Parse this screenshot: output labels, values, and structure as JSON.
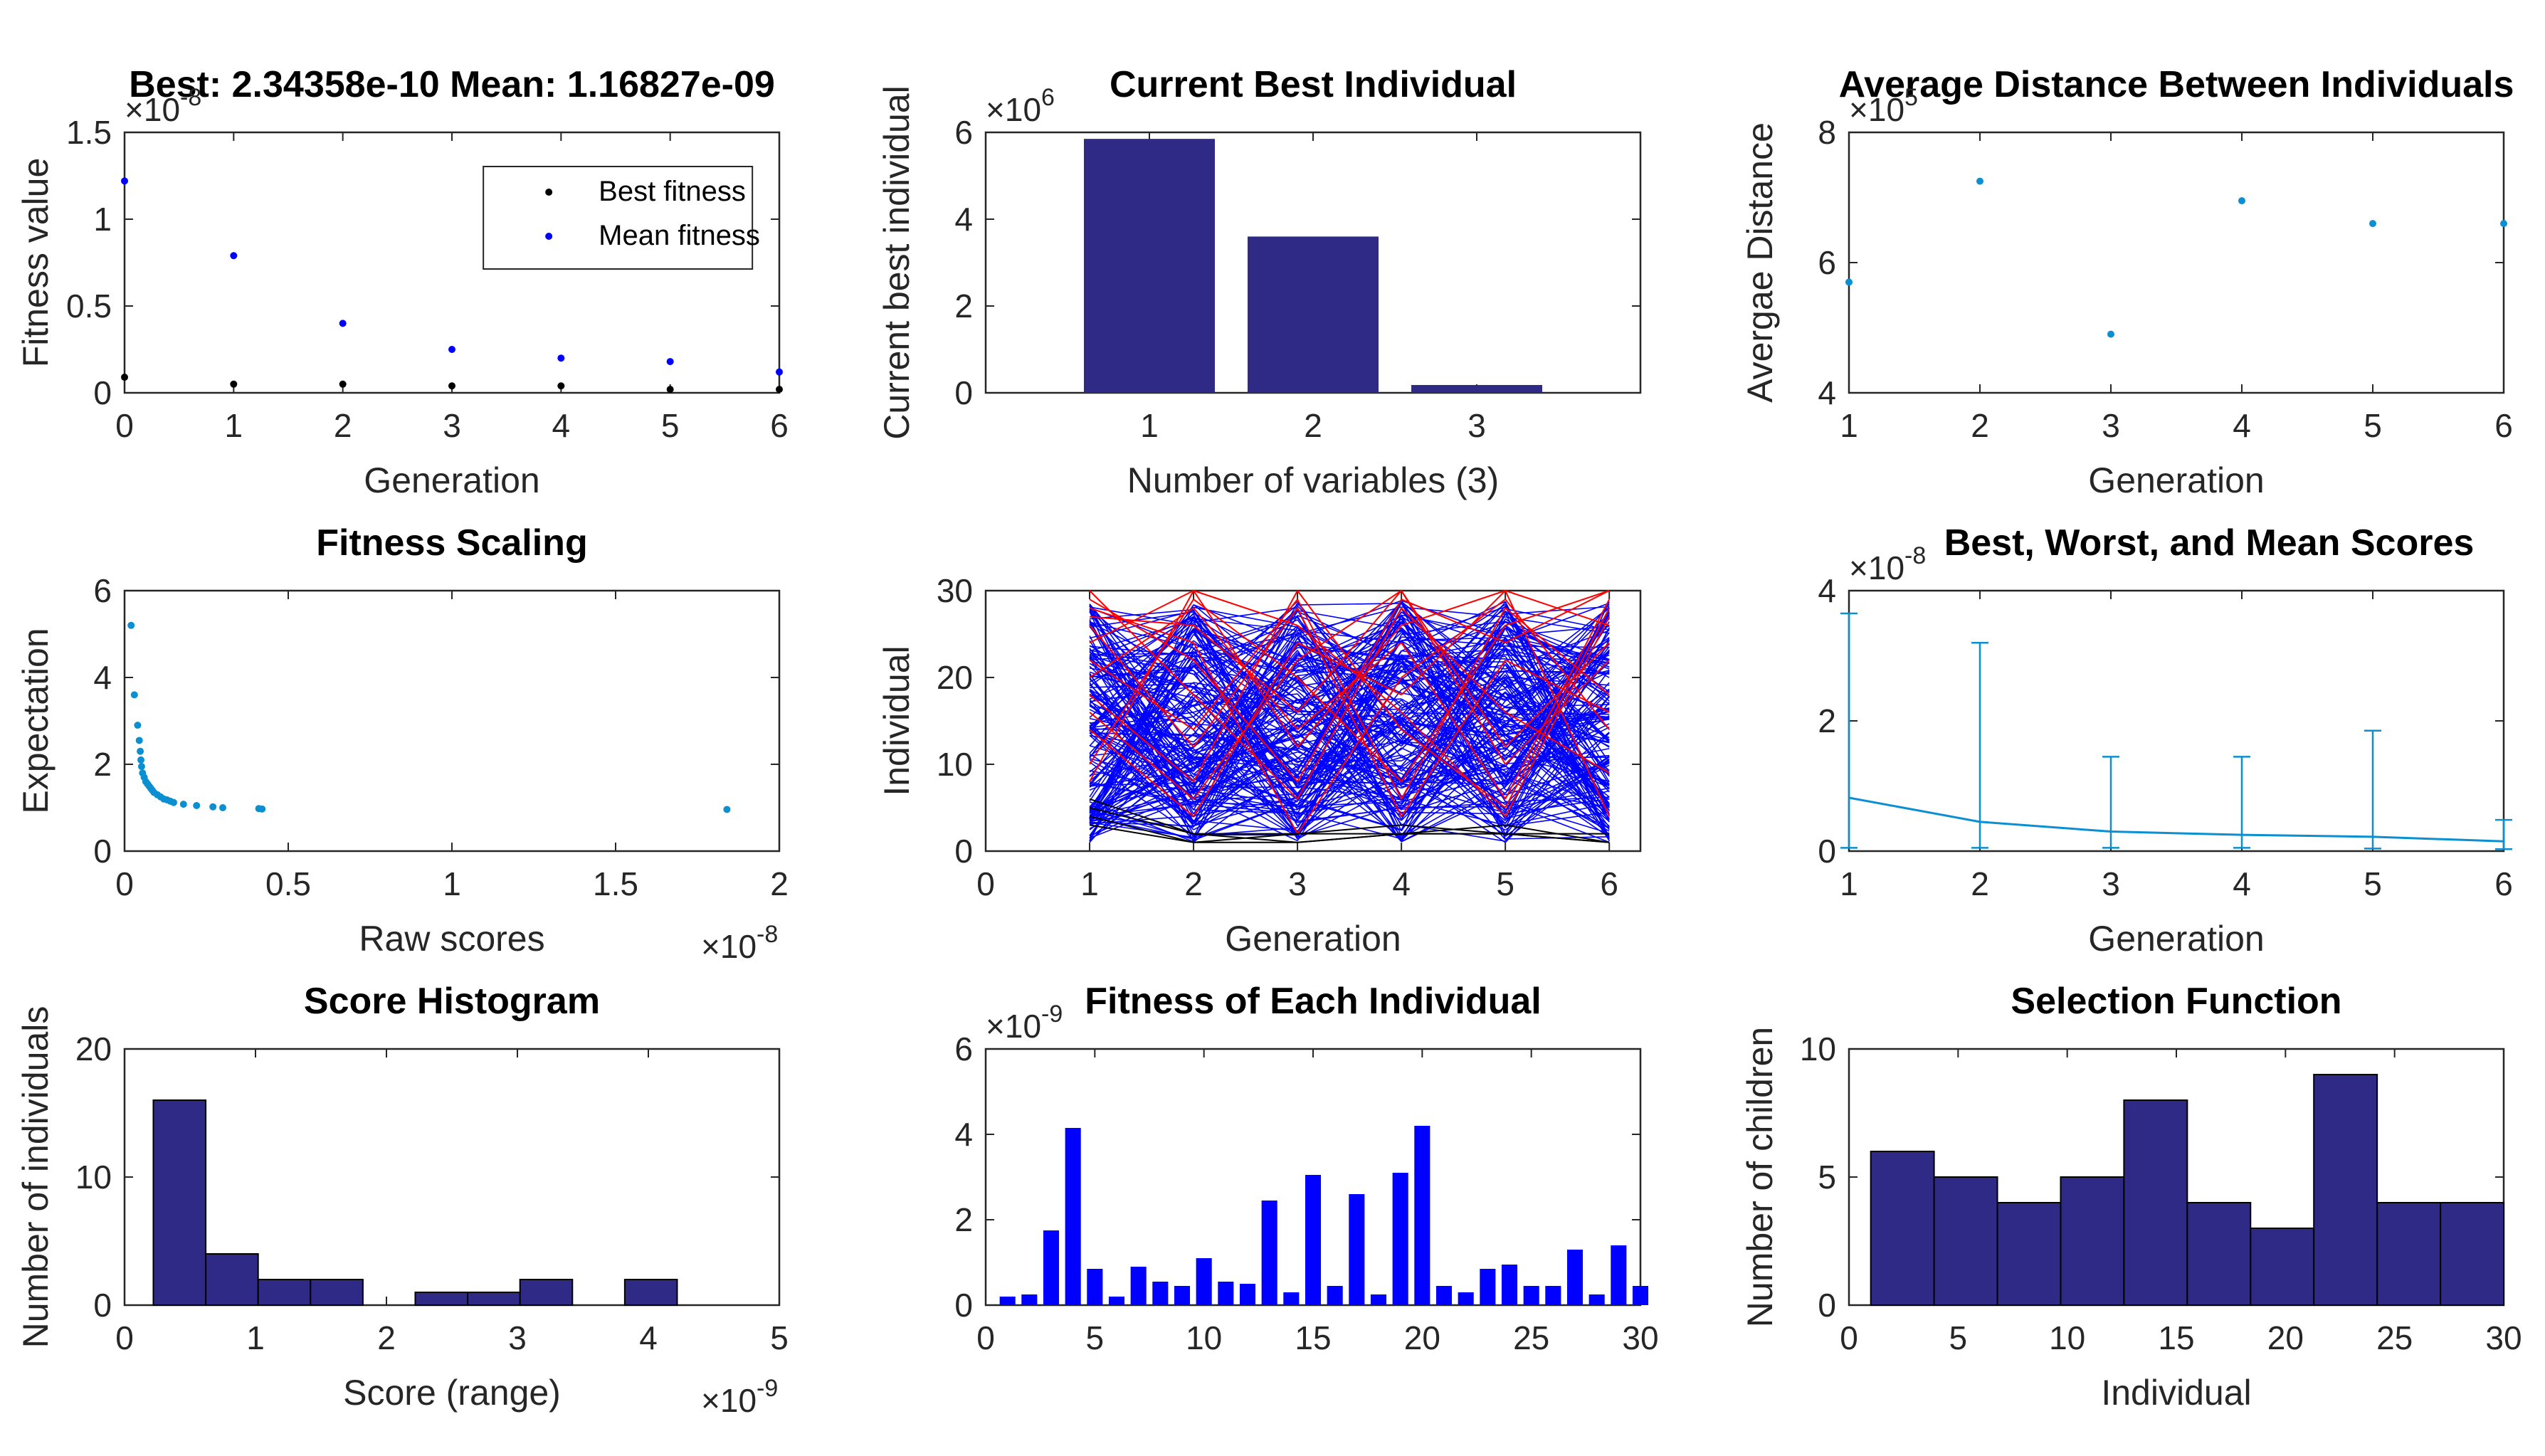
{
  "window": {
    "background": "#ffffff"
  },
  "colors": {
    "navy": "#2e2a86",
    "blue": "#0000ff",
    "cyan": "#0c8fd0",
    "red": "#ff0000",
    "black": "#000000"
  },
  "chart_data": [
    {
      "id": "p1",
      "type": "scatter",
      "title": "Best: 2.34358e-10 Mean: 1.16827e-09",
      "xlabel": "Generation",
      "ylabel": "Fitness value",
      "xlim": [
        0,
        6
      ],
      "ylim": [
        0,
        1.5
      ],
      "xticks": [
        "0",
        "1",
        "2",
        "3",
        "4",
        "5",
        "6"
      ],
      "yticks": [
        "0",
        "0.5",
        "1",
        "1.5"
      ],
      "yexp": "10",
      "yexp_power": "-8",
      "legend": {
        "position": "top-right",
        "entries": [
          "Best fitness",
          "Mean fitness"
        ]
      },
      "series": [
        {
          "name": "Best fitness",
          "color": "#000000",
          "x": [
            0,
            1,
            2,
            3,
            4,
            5,
            6
          ],
          "y": [
            0.09,
            0.05,
            0.05,
            0.04,
            0.04,
            0.02,
            0.02
          ]
        },
        {
          "name": "Mean fitness",
          "color": "#0000ff",
          "x": [
            0,
            1,
            2,
            3,
            4,
            5,
            6
          ],
          "y": [
            1.22,
            0.79,
            0.4,
            0.25,
            0.2,
            0.18,
            0.12
          ]
        }
      ]
    },
    {
      "id": "p2",
      "type": "bar",
      "title": "Current Best Individual",
      "xlabel": "Number of variables (3)",
      "ylabel": "Current best individual",
      "xlim": [
        0,
        4
      ],
      "ylim": [
        0,
        6
      ],
      "xticks": [
        "1",
        "2",
        "3"
      ],
      "yticks": [
        "0",
        "2",
        "4",
        "6"
      ],
      "yexp": "10",
      "yexp_power": "6",
      "categories": [
        1,
        2,
        3
      ],
      "values": [
        5.85,
        3.6,
        0.18
      ]
    },
    {
      "id": "p3",
      "type": "scatter",
      "title": "Average Distance Between Individuals",
      "xlabel": "Generation",
      "ylabel": "Avergae Distance",
      "xlim": [
        1,
        6
      ],
      "ylim": [
        4,
        8
      ],
      "xticks": [
        "1",
        "2",
        "3",
        "4",
        "5",
        "6"
      ],
      "yticks": [
        "4",
        "6",
        "8"
      ],
      "yexp": "10",
      "yexp_power": "5",
      "x": [
        1,
        2,
        3,
        4,
        5,
        6
      ],
      "y": [
        5.7,
        7.25,
        4.9,
        6.95,
        6.6,
        6.6
      ]
    },
    {
      "id": "p4",
      "type": "scatter",
      "title": "Fitness Scaling",
      "xlabel": "Raw scores",
      "ylabel": "Expectation",
      "xlim": [
        0,
        2
      ],
      "ylim": [
        0,
        6
      ],
      "xticks": [
        "0",
        "0.5",
        "1",
        "1.5",
        "2"
      ],
      "yticks": [
        "0",
        "2",
        "4",
        "6"
      ],
      "xexp": "10",
      "xexp_power": "-8",
      "x": [
        0.02,
        0.03,
        0.04,
        0.045,
        0.048,
        0.05,
        0.052,
        0.055,
        0.06,
        0.065,
        0.07,
        0.075,
        0.08,
        0.085,
        0.09,
        0.1,
        0.11,
        0.12,
        0.13,
        0.14,
        0.15,
        0.18,
        0.22,
        0.27,
        0.3,
        0.41,
        0.42,
        1.84
      ],
      "y": [
        5.2,
        3.6,
        2.9,
        2.55,
        2.3,
        2.1,
        1.95,
        1.8,
        1.7,
        1.6,
        1.55,
        1.5,
        1.45,
        1.4,
        1.35,
        1.3,
        1.25,
        1.2,
        1.18,
        1.15,
        1.12,
        1.08,
        1.05,
        1.02,
        1.0,
        0.98,
        0.97,
        0.96
      ]
    },
    {
      "id": "p5",
      "type": "line",
      "title": "",
      "xlabel": "Generation",
      "ylabel": "Individual",
      "xlim": [
        0,
        6.3
      ],
      "ylim": [
        0,
        30
      ],
      "xticks": [
        "0",
        "1",
        "2",
        "3",
        "4",
        "5",
        "6"
      ],
      "yticks": [
        "0",
        "10",
        "20",
        "30"
      ],
      "generations": [
        1,
        2,
        3,
        4,
        5,
        6
      ],
      "elite_black": [
        [
          4,
          1,
          1,
          2,
          2,
          1
        ],
        [
          6,
          2,
          2,
          3,
          2,
          1
        ],
        [
          3,
          1,
          2,
          2,
          3,
          1
        ],
        [
          5,
          2,
          1,
          2,
          2,
          2
        ]
      ],
      "elite_red": [
        [
          29,
          22,
          8,
          29,
          24,
          30
        ],
        [
          24,
          30,
          12,
          26,
          30,
          4
        ],
        [
          18,
          8,
          30,
          14,
          5,
          28
        ],
        [
          27,
          26,
          16,
          30,
          10,
          22
        ],
        [
          22,
          14,
          29,
          6,
          28,
          18
        ],
        [
          14,
          4,
          24,
          18,
          30,
          26
        ],
        [
          30,
          18,
          6,
          28,
          16,
          9
        ],
        [
          10,
          29,
          20,
          8,
          26,
          30
        ],
        [
          26,
          12,
          28,
          4,
          22,
          16
        ],
        [
          20,
          28,
          14,
          24,
          6,
          29
        ],
        [
          16,
          6,
          22,
          30,
          12,
          24
        ],
        [
          28,
          24,
          2,
          20,
          29,
          14
        ],
        [
          8,
          30,
          26,
          16,
          4,
          27
        ]
      ]
    },
    {
      "id": "p6",
      "type": "line",
      "title": "Best, Worst, and Mean Scores",
      "xlabel": "Generation",
      "ylabel": "",
      "xlim": [
        1,
        6
      ],
      "ylim": [
        0,
        4
      ],
      "xticks": [
        "1",
        "2",
        "3",
        "4",
        "5",
        "6"
      ],
      "yticks": [
        "0",
        "2",
        "4"
      ],
      "yexp": "10",
      "yexp_power": "-8",
      "x": [
        1,
        2,
        3,
        4,
        5,
        6
      ],
      "mean": [
        0.82,
        0.45,
        0.3,
        0.25,
        0.22,
        0.15
      ],
      "best": [
        0.05,
        0.05,
        0.05,
        0.05,
        0.04,
        0.03
      ],
      "worst": [
        3.65,
        3.2,
        1.45,
        1.45,
        1.85,
        0.48
      ]
    },
    {
      "id": "p7",
      "type": "bar",
      "title": "Score Histogram",
      "xlabel": "Score (range)",
      "ylabel": "Number of individuals",
      "xlim": [
        0,
        5
      ],
      "ylim": [
        0,
        20
      ],
      "xticks": [
        "0",
        "1",
        "2",
        "3",
        "4",
        "5"
      ],
      "yticks": [
        "0",
        "10",
        "20"
      ],
      "xexp": "10",
      "xexp_power": "-9",
      "bin_edges": [
        0.22,
        0.62,
        1.02,
        1.42,
        1.82,
        2.22,
        2.62,
        3.02,
        3.42,
        3.82,
        4.22
      ],
      "values": [
        16,
        4,
        2,
        2,
        0,
        1,
        1,
        2,
        0,
        2
      ]
    },
    {
      "id": "p8",
      "type": "bar",
      "title": "Fitness of Each Individual",
      "xlabel": "",
      "ylabel": "",
      "xlim": [
        0,
        30
      ],
      "ylim": [
        0,
        6
      ],
      "xticks": [
        "0",
        "5",
        "10",
        "15",
        "20",
        "25",
        "30"
      ],
      "yticks": [
        "0",
        "2",
        "4",
        "6"
      ],
      "yexp": "10",
      "yexp_power": "-9",
      "categories": [
        1,
        2,
        3,
        4,
        5,
        6,
        7,
        8,
        9,
        10,
        11,
        12,
        13,
        14,
        15,
        16,
        17,
        18,
        19,
        20,
        21,
        22,
        23,
        24,
        25,
        26,
        27,
        28,
        29,
        30
      ],
      "values": [
        0.2,
        0.25,
        1.75,
        4.15,
        0.85,
        0.2,
        0.9,
        0.55,
        0.45,
        1.1,
        0.55,
        0.5,
        2.45,
        0.3,
        3.05,
        0.45,
        2.6,
        0.25,
        3.1,
        4.2,
        0.45,
        0.3,
        0.85,
        0.95,
        0.45,
        0.45,
        1.3,
        0.25,
        1.4,
        0.45
      ]
    },
    {
      "id": "p9",
      "type": "bar",
      "title": "Selection Function",
      "xlabel": "Individual",
      "ylabel": "Number of children",
      "xlim": [
        0,
        30
      ],
      "ylim": [
        0,
        10
      ],
      "xticks": [
        "0",
        "5",
        "10",
        "15",
        "20",
        "25",
        "30"
      ],
      "yticks": [
        "0",
        "5",
        "10"
      ],
      "bin_edges": [
        1,
        3.9,
        6.8,
        9.7,
        12.6,
        15.5,
        18.4,
        21.3,
        24.2,
        27.1,
        30
      ],
      "values": [
        6,
        5,
        4,
        5,
        8,
        4,
        3,
        9,
        4,
        4
      ]
    }
  ]
}
